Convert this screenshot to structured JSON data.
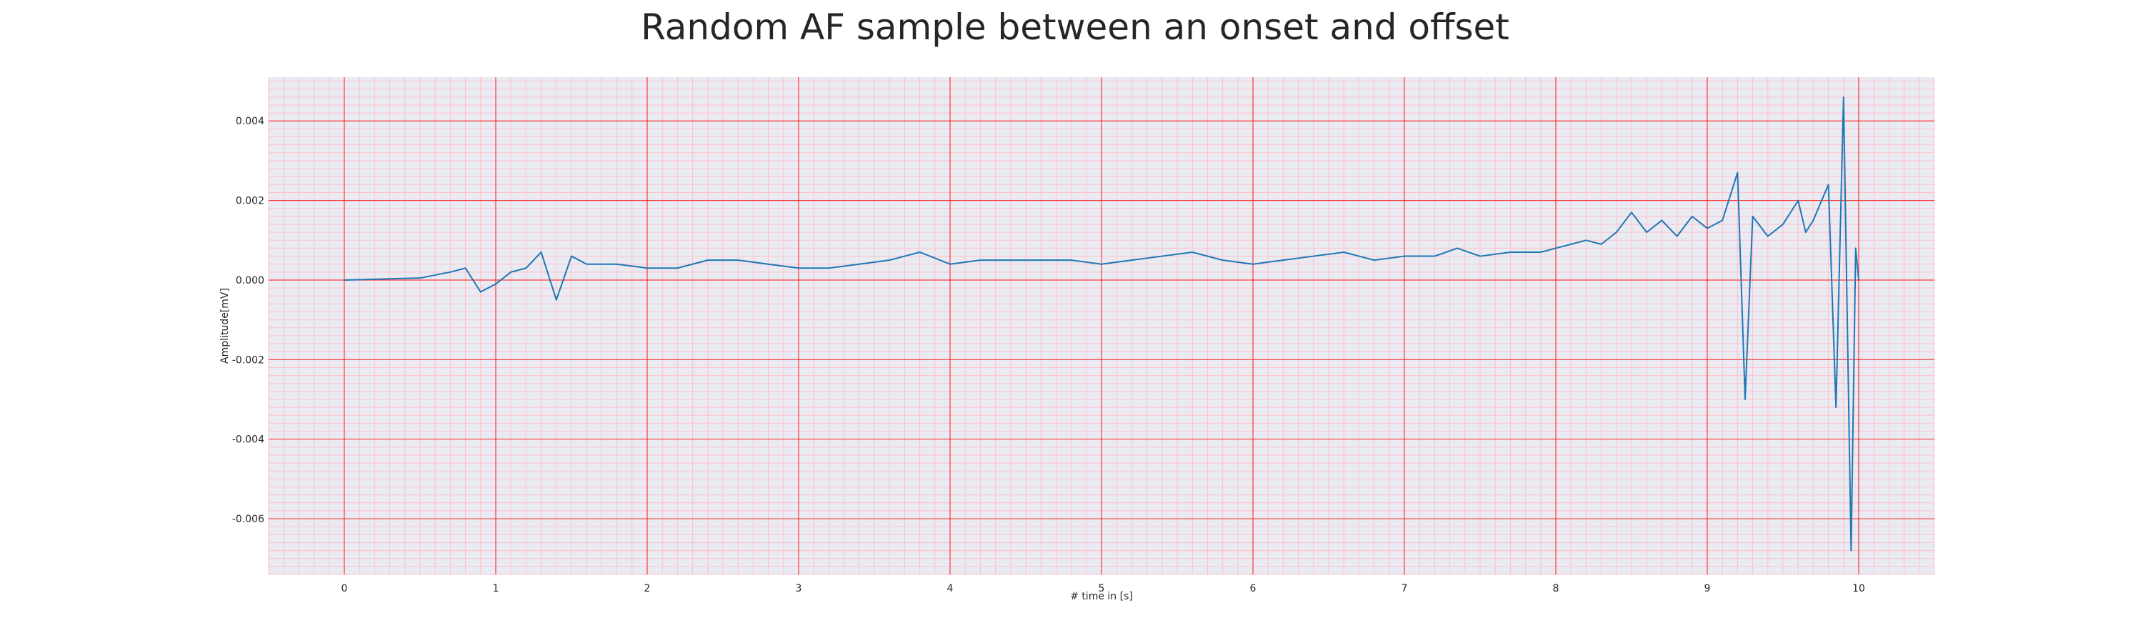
{
  "chart_data": {
    "type": "line",
    "title": "Random AF sample between an onset and offset",
    "xlabel": "# time in [s]",
    "ylabel": "Amplitude[mV]",
    "xlim": [
      -0.5,
      10.5
    ],
    "ylim": [
      -0.0074,
      0.0051
    ],
    "x_ticks": [
      0,
      1,
      2,
      3,
      4,
      5,
      6,
      7,
      8,
      9,
      10
    ],
    "x_tick_labels": [
      "0",
      "1",
      "2",
      "3",
      "4",
      "5",
      "6",
      "7",
      "8",
      "9",
      "10"
    ],
    "y_ticks": [
      -0.006,
      -0.004,
      -0.002,
      0.0,
      0.002,
      0.004
    ],
    "y_tick_labels": [
      "-0.006",
      "-0.004",
      "-0.002",
      "0.000",
      "0.002",
      "0.004"
    ],
    "grid": true,
    "minor_grid": true,
    "colors": {
      "line": "#1f77b4",
      "plot_background": "#eaeaf2",
      "major_grid": "#ff0000",
      "minor_grid": "#ffc0cb"
    },
    "series": [
      {
        "x": [
          0.0,
          0.5,
          0.7,
          0.8,
          0.9,
          1.0,
          1.1,
          1.2,
          1.3,
          1.4,
          1.5,
          1.6,
          1.8,
          2.0,
          2.2,
          2.4,
          2.6,
          2.8,
          3.0,
          3.2,
          3.4,
          3.6,
          3.7,
          3.8,
          4.0,
          4.2,
          4.4,
          4.6,
          4.8,
          5.0,
          5.2,
          5.4,
          5.6,
          5.8,
          6.0,
          6.2,
          6.4,
          6.6,
          6.8,
          7.0,
          7.2,
          7.35,
          7.5,
          7.7,
          7.9,
          8.0,
          8.1,
          8.2,
          8.3,
          8.4,
          8.5,
          8.6,
          8.7,
          8.8,
          8.9,
          9.0,
          9.1,
          9.2,
          9.25,
          9.3,
          9.4,
          9.5,
          9.6,
          9.65,
          9.7,
          9.8,
          9.85,
          9.9,
          9.95,
          9.98,
          10.0
        ],
        "y": [
          0.0,
          5e-05,
          0.0002,
          0.0003,
          -0.0003,
          -0.0001,
          0.0002,
          0.0003,
          0.0007,
          -0.0005,
          0.0006,
          0.0004,
          0.0004,
          0.0003,
          0.0003,
          0.0005,
          0.0005,
          0.0004,
          0.0003,
          0.0003,
          0.0004,
          0.0005,
          0.0006,
          0.0007,
          0.0004,
          0.0005,
          0.0005,
          0.0005,
          0.0005,
          0.0004,
          0.0005,
          0.0006,
          0.0007,
          0.0005,
          0.0004,
          0.0005,
          0.0006,
          0.0007,
          0.0005,
          0.0006,
          0.0006,
          0.0008,
          0.0006,
          0.0007,
          0.0007,
          0.0008,
          0.0009,
          0.001,
          0.0009,
          0.0012,
          0.0017,
          0.0012,
          0.0015,
          0.0011,
          0.0016,
          0.0013,
          0.0015,
          0.0027,
          -0.003,
          0.0016,
          0.0011,
          0.0014,
          0.002,
          0.0012,
          0.0015,
          0.0024,
          -0.0032,
          0.0046,
          -0.0068,
          0.0008,
          0.0
        ]
      }
    ]
  }
}
